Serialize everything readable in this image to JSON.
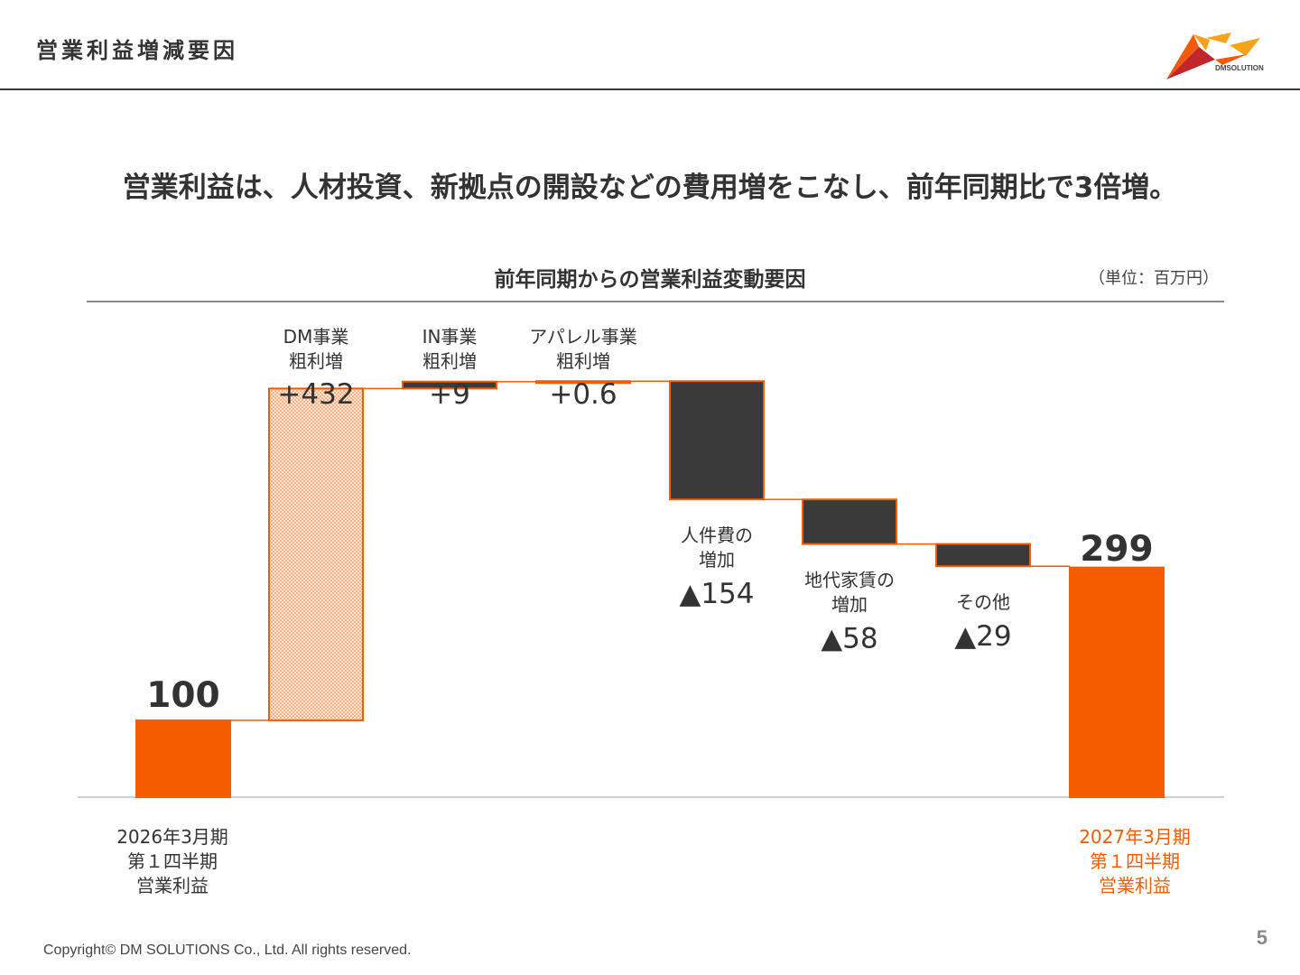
{
  "header": {
    "title": "営業利益増減要因"
  },
  "logo": {
    "text": "DMSOLUTIONS",
    "colors": [
      "#f15a09",
      "#f7a21b",
      "#c0272d"
    ]
  },
  "headline": "営業利益は、人材投資、新拠点の開設などの費用増をこなし、前年同期比で3倍増。",
  "chart_title": "前年同期からの営業利益変動要因",
  "unit_label": "（単位：百万円）",
  "colors": {
    "accent": "#f55c00",
    "increase_fill": "#fbd3b5",
    "decrease_fill": "#3a3a3a",
    "text": "#333333"
  },
  "chart_data": {
    "type": "bar",
    "subtype": "waterfall",
    "title": "前年同期からの営業利益変動要因",
    "unit": "（単位：百万円）",
    "ylim": [
      0,
      632
    ],
    "steps": [
      {
        "id": "start",
        "kind": "total",
        "value": 100,
        "value_label": "100",
        "label_lines": [
          "2026年3月期",
          "第１四半期",
          "営業利益"
        ]
      },
      {
        "id": "dm",
        "kind": "delta",
        "value": 432,
        "value_label": "+432",
        "label_lines": [
          "DM事業",
          "粗利増"
        ]
      },
      {
        "id": "in",
        "kind": "delta",
        "value": 9,
        "value_label": "+9",
        "label_lines": [
          "IN事業",
          "粗利増"
        ]
      },
      {
        "id": "apparel",
        "kind": "delta",
        "value": 0.6,
        "value_label": "+0.6",
        "label_lines": [
          "アパレル事業",
          "粗利増"
        ]
      },
      {
        "id": "personnel",
        "kind": "delta",
        "value": -154,
        "value_label": "▲154",
        "label_lines": [
          "人件費の",
          "増加"
        ]
      },
      {
        "id": "rent",
        "kind": "delta",
        "value": -58,
        "value_label": "▲58",
        "label_lines": [
          "地代家賃の",
          "増加"
        ]
      },
      {
        "id": "other",
        "kind": "delta",
        "value": -29,
        "value_label": "▲29",
        "label_lines": [
          "その他"
        ]
      },
      {
        "id": "end",
        "kind": "total",
        "value": 299,
        "value_label": "299",
        "label_lines": [
          "2027年3月期",
          "第１四半期",
          "営業利益"
        ]
      }
    ]
  },
  "footer": {
    "copyright": "Copyright© DM SOLUTIONS Co., Ltd. All rights reserved.",
    "page_number": "5"
  }
}
